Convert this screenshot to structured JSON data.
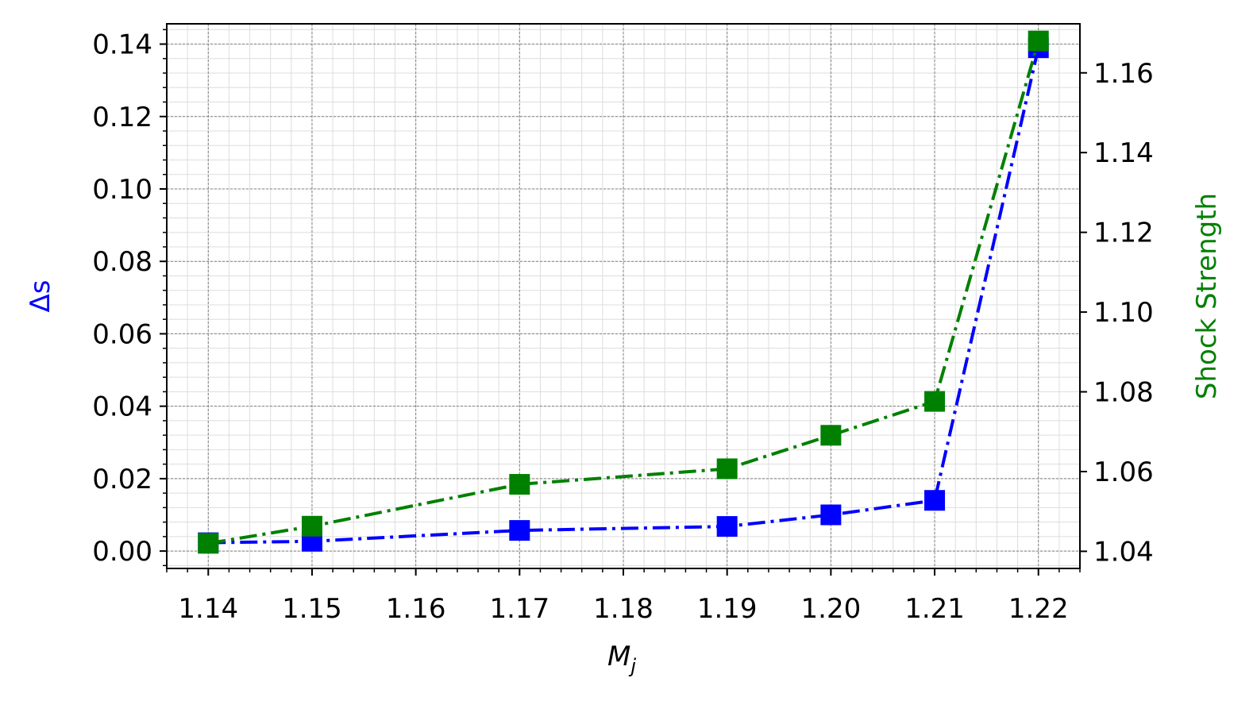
{
  "chart_data": {
    "type": "line",
    "title": "",
    "xlabel": "M",
    "xlabel_subscript": "j",
    "x": [
      1.14,
      1.15,
      1.17,
      1.19,
      1.2,
      1.21,
      1.22
    ],
    "x_ticks": [
      "1.14",
      "1.15",
      "1.16",
      "1.17",
      "1.18",
      "1.19",
      "1.20",
      "1.21",
      "1.22"
    ],
    "xlim": [
      1.136,
      1.224
    ],
    "grid": true,
    "legend": "none",
    "left_axis": {
      "label": "Δs",
      "color": "#0000ff",
      "ylim": [
        -0.0048,
        0.1456
      ],
      "ticks": [
        "0.00",
        "0.02",
        "0.04",
        "0.06",
        "0.08",
        "0.10",
        "0.12",
        "0.14"
      ]
    },
    "right_axis": {
      "label": "Shock Strength",
      "color": "#008000",
      "ylim": [
        1.0357,
        1.1723
      ],
      "ticks": [
        "1.04",
        "1.06",
        "1.08",
        "1.10",
        "1.12",
        "1.14",
        "1.16"
      ]
    },
    "series": [
      {
        "axis": "left",
        "color": "#0000ff",
        "linestyle": "dashdot",
        "marker": "square",
        "values": [
          0.0023,
          0.0027,
          0.0057,
          0.0068,
          0.01,
          0.014,
          0.139
        ]
      },
      {
        "axis": "right",
        "color": "#008000",
        "linestyle": "dashdot",
        "marker": "square",
        "values": [
          1.042,
          1.0463,
          1.0568,
          1.0607,
          1.0691,
          1.0776,
          1.168
        ]
      }
    ]
  }
}
